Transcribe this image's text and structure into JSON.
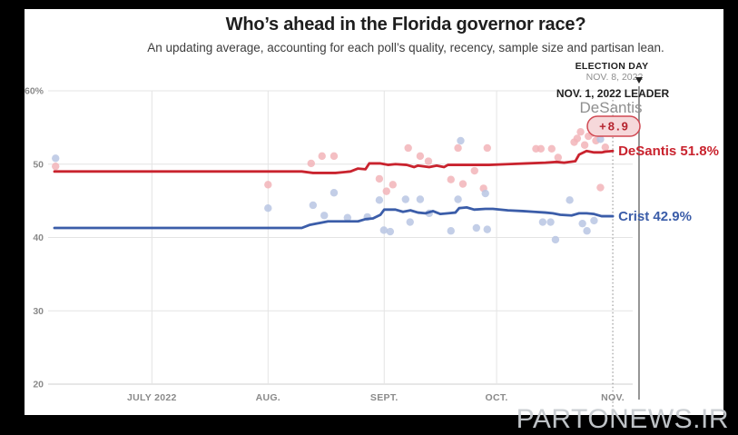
{
  "header": {
    "title": "Who’s ahead in the Florida governor race?",
    "subtitle": "An updating average, accounting for each poll’s quality, recency, sample size and partisan lean."
  },
  "annotations": {
    "election_day": {
      "label": "ELECTION DAY",
      "date": "NOV. 8, 2022",
      "marker_icon": "triangle-down"
    },
    "leader": {
      "label": "NOV. 1, 2022 LEADER",
      "name": "DeSantis",
      "margin": "+8.9"
    }
  },
  "watermark": "PARTONEWS.IR",
  "colors": {
    "desantis_line": "#c9232e",
    "desantis_dot": "#f2b4b8",
    "crist_line": "#3b5da9",
    "crist_dot": "#b9c5e3",
    "gridline": "#e4e4e4",
    "axis_line": "#cfcfcf",
    "axis_text": "#8a8a8a",
    "badge_fill": "#f6d8da",
    "badge_stroke": "#d04852",
    "badge_text": "#b5232e",
    "dotted_line": "#9b9b9b",
    "election_line": "#8a8a8a",
    "muted_text": "#8f8f8f",
    "dark_text": "#1f1f1f"
  },
  "chart_data": {
    "type": "line",
    "title": "Who’s ahead in the Florida governor race?",
    "x_unit": "days since 2022-06-05",
    "x_domain": [
      0,
      156
    ],
    "ylim": [
      20,
      60
    ],
    "grid": true,
    "y_ticks": [
      {
        "v": 60,
        "label": "60%"
      },
      {
        "v": 50,
        "label": "50"
      },
      {
        "v": 40,
        "label": "40"
      },
      {
        "v": 30,
        "label": "30"
      },
      {
        "v": 20,
        "label": "20"
      }
    ],
    "x_ticks": [
      {
        "t": 26,
        "label": "JULY 2022"
      },
      {
        "t": 57,
        "label": "AUG."
      },
      {
        "t": 88,
        "label": "SEPT."
      },
      {
        "t": 118,
        "label": "OCT."
      },
      {
        "t": 149,
        "label": "NOV."
      }
    ],
    "nov1_t": 149,
    "election_t": 156,
    "series": [
      {
        "name": "DeSantis",
        "final_value": 51.8,
        "final_label": "DeSantis 51.8%",
        "trend": [
          [
            0,
            49
          ],
          [
            20,
            49
          ],
          [
            40,
            49
          ],
          [
            60,
            49
          ],
          [
            66,
            49
          ],
          [
            69,
            48.8
          ],
          [
            75,
            48.8
          ],
          [
            79,
            49
          ],
          [
            81,
            49.4
          ],
          [
            83,
            49.3
          ],
          [
            84,
            50.1
          ],
          [
            87,
            50.1
          ],
          [
            89,
            49.9
          ],
          [
            91,
            50
          ],
          [
            94,
            49.9
          ],
          [
            96,
            49.6
          ],
          [
            97,
            49.8
          ],
          [
            100,
            49.6
          ],
          [
            102,
            49.8
          ],
          [
            104,
            49.6
          ],
          [
            105,
            49.9
          ],
          [
            116,
            49.9
          ],
          [
            121,
            50
          ],
          [
            126,
            50.1
          ],
          [
            131,
            50.2
          ],
          [
            134,
            50.3
          ],
          [
            136,
            50.2
          ],
          [
            139,
            50.4
          ],
          [
            140,
            51.3
          ],
          [
            142,
            51.8
          ],
          [
            144,
            51.6
          ],
          [
            146,
            51.6
          ],
          [
            147,
            51.7
          ],
          [
            149,
            51.8
          ]
        ],
        "polls": [
          [
            0.3,
            49.7
          ],
          [
            57,
            47.2
          ],
          [
            68.5,
            50.1
          ],
          [
            71.4,
            51.1
          ],
          [
            74.6,
            51.1
          ],
          [
            86.7,
            48
          ],
          [
            88.6,
            46.3
          ],
          [
            90.3,
            47.2
          ],
          [
            94.4,
            52.2
          ],
          [
            97.6,
            51.1
          ],
          [
            99.8,
            50.4
          ],
          [
            105.8,
            47.9
          ],
          [
            107.7,
            52.2
          ],
          [
            109,
            47.3
          ],
          [
            112.1,
            49.1
          ],
          [
            114.5,
            46.7
          ],
          [
            115.5,
            52.2
          ],
          [
            128.5,
            52.1
          ],
          [
            129.8,
            52.1
          ],
          [
            132.7,
            52.1
          ],
          [
            134.4,
            50.9
          ],
          [
            138.7,
            53
          ],
          [
            139.5,
            53.5
          ],
          [
            140.4,
            54.4
          ],
          [
            141.5,
            52.6
          ],
          [
            142.5,
            53.8
          ],
          [
            143.5,
            54.2
          ],
          [
            144.5,
            53.2
          ],
          [
            145.7,
            46.8
          ],
          [
            147,
            52.3
          ]
        ]
      },
      {
        "name": "Crist",
        "final_value": 42.9,
        "final_label": "Crist 42.9%",
        "trend": [
          [
            0,
            41.3
          ],
          [
            20,
            41.3
          ],
          [
            40,
            41.3
          ],
          [
            60,
            41.3
          ],
          [
            66,
            41.3
          ],
          [
            68,
            41.7
          ],
          [
            70,
            41.9
          ],
          [
            71,
            42
          ],
          [
            73,
            42.2
          ],
          [
            81,
            42.2
          ],
          [
            83,
            42.5
          ],
          [
            85,
            42.6
          ],
          [
            87,
            43.1
          ],
          [
            88,
            43.8
          ],
          [
            91,
            43.8
          ],
          [
            93,
            43.5
          ],
          [
            95,
            43.7
          ],
          [
            97,
            43.4
          ],
          [
            99,
            43.3
          ],
          [
            101,
            43.6
          ],
          [
            103,
            43.2
          ],
          [
            105,
            43.3
          ],
          [
            107,
            43.4
          ],
          [
            108,
            44
          ],
          [
            110,
            44.1
          ],
          [
            112,
            43.8
          ],
          [
            115,
            43.9
          ],
          [
            117,
            43.9
          ],
          [
            121,
            43.7
          ],
          [
            125,
            43.6
          ],
          [
            128,
            43.5
          ],
          [
            131,
            43.4
          ],
          [
            133,
            43.3
          ],
          [
            135,
            43.1
          ],
          [
            138,
            43
          ],
          [
            140,
            43.3
          ],
          [
            142,
            43.3
          ],
          [
            144,
            43.2
          ],
          [
            146,
            42.9
          ],
          [
            149,
            42.9
          ]
        ],
        "polls": [
          [
            0.3,
            50.8
          ],
          [
            57,
            44
          ],
          [
            69,
            44.4
          ],
          [
            72,
            43
          ],
          [
            74.6,
            46.1
          ],
          [
            78.2,
            42.7
          ],
          [
            83.5,
            42.8
          ],
          [
            86.7,
            45.1
          ],
          [
            87.9,
            41
          ],
          [
            89.6,
            40.8
          ],
          [
            93.7,
            45.2
          ],
          [
            94.9,
            42.1
          ],
          [
            97.6,
            45.2
          ],
          [
            100,
            43.3
          ],
          [
            105.8,
            40.9
          ],
          [
            107.7,
            45.2
          ],
          [
            108.4,
            53.2
          ],
          [
            112.6,
            41.3
          ],
          [
            115,
            46
          ],
          [
            115.5,
            41.1
          ],
          [
            130.3,
            42.1
          ],
          [
            132.4,
            42.1
          ],
          [
            133.7,
            39.7
          ],
          [
            137.5,
            45.1
          ],
          [
            140.9,
            41.9
          ],
          [
            142.1,
            40.9
          ],
          [
            144,
            42.3
          ],
          [
            145.7,
            53.4
          ]
        ]
      }
    ]
  }
}
